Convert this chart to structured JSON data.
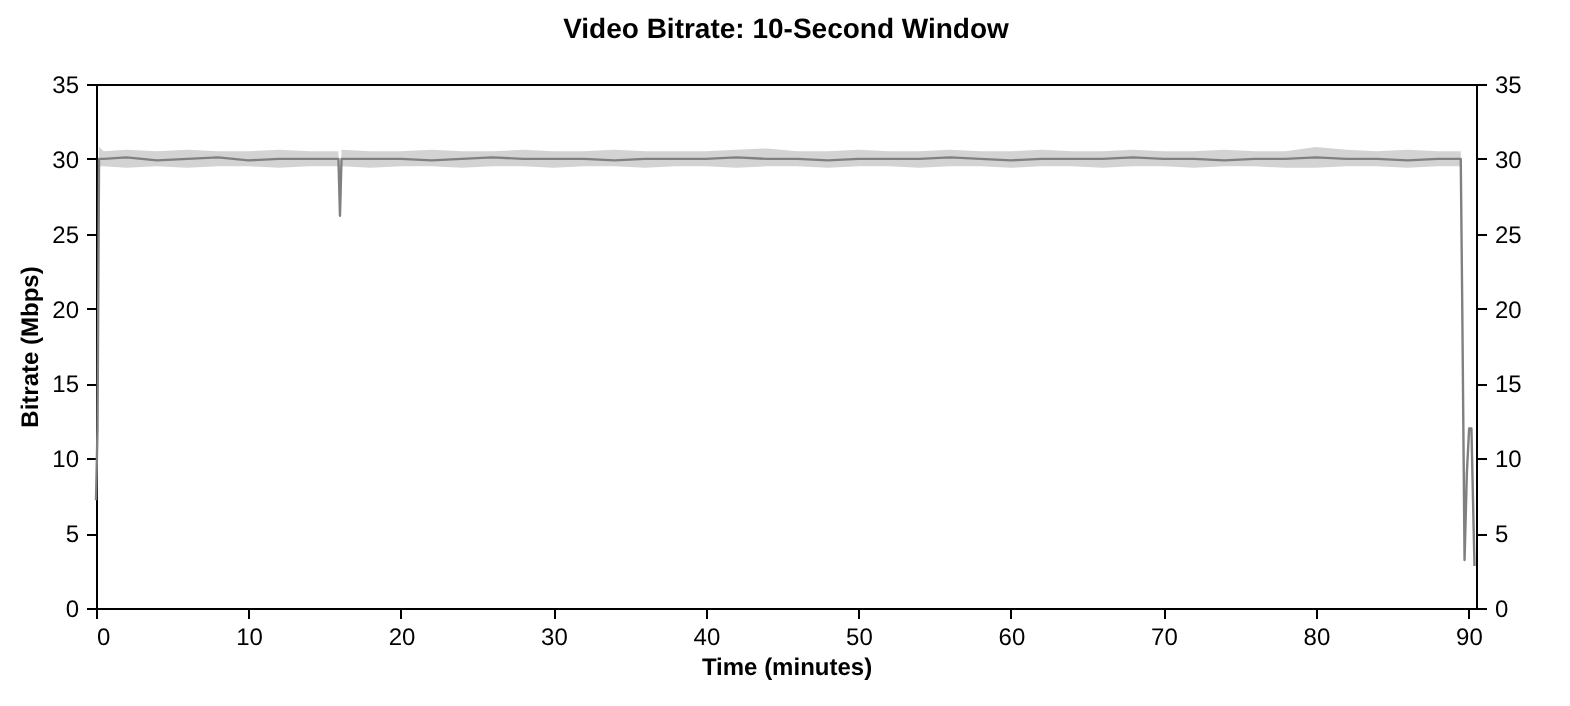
{
  "chart_data": {
    "type": "line",
    "title": "Video Bitrate: 10-Second Window",
    "xlabel": "Time (minutes)",
    "ylabel": "Bitrate (Mbps)",
    "x": [
      0,
      0.1,
      0.2,
      0.5,
      2,
      4,
      6,
      8,
      10,
      12,
      14,
      15.9,
      16.0,
      16.1,
      18,
      20,
      22,
      24,
      26,
      28,
      30,
      32,
      34,
      36,
      38,
      40,
      42,
      44,
      46,
      48,
      50,
      52,
      54,
      56,
      58,
      60,
      62,
      64,
      66,
      68,
      70,
      72,
      74,
      76,
      78,
      80,
      82,
      84,
      86,
      88,
      89.5,
      89.6,
      89.75,
      89.9,
      90.05,
      90.2,
      90.4
    ],
    "series": [
      {
        "color": "#808080",
        "values": [
          7.2,
          12,
          30,
          30,
          30.1,
          29.9,
          30,
          30.1,
          29.9,
          30,
          30,
          30,
          26.2,
          30,
          30,
          30,
          29.9,
          30,
          30.1,
          30,
          30,
          30,
          29.9,
          30,
          30,
          30,
          30.1,
          30,
          30,
          29.9,
          30,
          30,
          30,
          30.1,
          30,
          29.9,
          30,
          30,
          30,
          30.1,
          30,
          30,
          29.9,
          30,
          30,
          30.1,
          30,
          30,
          29.9,
          30,
          30,
          20,
          3.2,
          9,
          12,
          12,
          2.8
        ],
        "lower": [
          7.2,
          12,
          29.5,
          29.5,
          29.4,
          29.5,
          29.4,
          29.5,
          29.5,
          29.4,
          29.5,
          29.5,
          26.2,
          29.5,
          29.4,
          29.5,
          29.5,
          29.4,
          29.5,
          29.5,
          29.4,
          29.5,
          29.5,
          29.4,
          29.5,
          29.5,
          29.4,
          29.5,
          29.5,
          29.4,
          29.5,
          29.5,
          29.4,
          29.5,
          29.5,
          29.4,
          29.5,
          29.5,
          29.4,
          29.5,
          29.5,
          29.4,
          29.5,
          29.5,
          29.4,
          29.4,
          29.5,
          29.5,
          29.4,
          29.5,
          29.5,
          20,
          3.2,
          9,
          12,
          12,
          2.8
        ],
        "upper": [
          7.2,
          12,
          30.8,
          30.5,
          30.6,
          30.5,
          30.6,
          30.5,
          30.5,
          30.6,
          30.5,
          30.5,
          26.2,
          30.6,
          30.5,
          30.5,
          30.6,
          30.5,
          30.5,
          30.6,
          30.5,
          30.5,
          30.6,
          30.5,
          30.5,
          30.5,
          30.6,
          30.7,
          30.5,
          30.5,
          30.6,
          30.5,
          30.5,
          30.6,
          30.5,
          30.5,
          30.6,
          30.5,
          30.5,
          30.6,
          30.5,
          30.5,
          30.6,
          30.5,
          30.5,
          30.8,
          30.6,
          30.5,
          30.6,
          30.5,
          30.5,
          20,
          3.2,
          9,
          12,
          12,
          2.8
        ]
      }
    ],
    "xlim": [
      0,
      90.5
    ],
    "xticks": [
      0,
      10,
      20,
      30,
      40,
      50,
      60,
      70,
      80,
      90
    ],
    "ylim": [
      0,
      35
    ],
    "yticks": [
      0,
      5,
      10,
      15,
      20,
      25,
      30,
      35
    ],
    "y2lim": [
      0,
      35
    ],
    "y2ticks": [
      0,
      5,
      10,
      15,
      20,
      25,
      30,
      35
    ],
    "grid": false
  }
}
